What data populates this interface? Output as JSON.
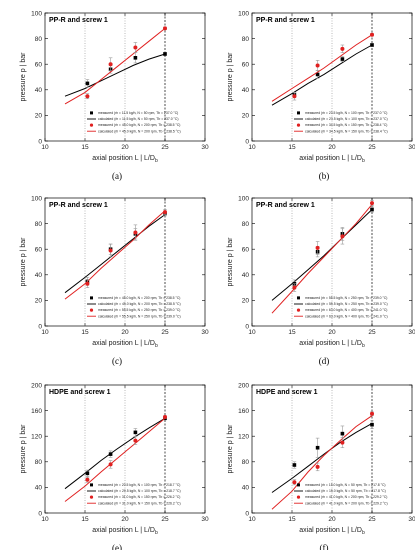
{
  "chart_data": [
    {
      "type": "line",
      "label": "(a)",
      "title": "PP-R and screw 1",
      "xlabel": "axial position L  |  L/D",
      "xlabel_sub": "b",
      "ylabel": "pressure p  |  bar",
      "xlim": [
        10,
        30
      ],
      "ylim": [
        0,
        100
      ],
      "xticks": [
        10,
        15,
        20,
        25,
        30
      ],
      "yticks": [
        0,
        20,
        40,
        60,
        80,
        100
      ],
      "vline": 25,
      "legend": [
        "measured (ṁ = 11.5 kg/h, N = 50 rpm, Tb = 237.0 °C)",
        "calculated (ṁ = 11.5 kg/h, N = 50 rpm, Tb = 237.0 °C)",
        "measured (ṁ = 45.0 kg/h, N = 200 rpm, Tb = 238.5 °C)",
        "calculated (ṁ = 45.0 kg/h, N = 200 rpm, Tb = 238.5 °C)"
      ],
      "series": [
        {
          "color": "#000000",
          "kind": "calculated",
          "x": [
            12.5,
            15,
            17,
            19,
            21,
            23,
            25
          ],
          "y": [
            35,
            41,
            47,
            53,
            59,
            64,
            68
          ]
        },
        {
          "color": "#000000",
          "kind": "measured",
          "x": [
            15.3,
            18.2,
            21.3,
            25
          ],
          "y": [
            45,
            56,
            65,
            68
          ],
          "err": [
            3,
            3,
            4,
            1
          ]
        },
        {
          "color": "#e02020",
          "kind": "calculated",
          "x": [
            12.5,
            15,
            17,
            19,
            21,
            23,
            25
          ],
          "y": [
            29,
            38,
            48,
            58,
            68,
            78,
            88
          ]
        },
        {
          "color": "#e02020",
          "kind": "measured",
          "x": [
            15.3,
            18.2,
            21.3,
            25
          ],
          "y": [
            35,
            60,
            73,
            88
          ],
          "err": [
            2,
            5,
            4,
            1
          ]
        }
      ]
    },
    {
      "type": "line",
      "label": "(b)",
      "title": "PP-R and screw 1",
      "xlabel": "axial position L  |  L/D",
      "xlabel_sub": "b",
      "ylabel": "pressure p  |  bar",
      "xlim": [
        10,
        30
      ],
      "ylim": [
        0,
        100
      ],
      "xticks": [
        10,
        15,
        20,
        25,
        30
      ],
      "yticks": [
        0,
        20,
        40,
        60,
        80,
        100
      ],
      "vline": 25,
      "legend": [
        "measured (ṁ = 23.5 kg/h, N = 100 rpm, Tb = 237.0 °C)",
        "calculated (ṁ = 23.5 kg/h, N = 100 rpm, Tb = 237.0 °C)",
        "measured (ṁ = 34.5 kg/h, N = 150 rpm, Tb = 238.4 °C)",
        "calculated (ṁ = 34.5 kg/h, N = 150 rpm, Tb = 238.4 °C)"
      ],
      "series": [
        {
          "color": "#000000",
          "kind": "calculated",
          "x": [
            12.5,
            15,
            17,
            19,
            21,
            23,
            25
          ],
          "y": [
            28,
            37,
            45,
            52,
            60,
            68,
            75
          ]
        },
        {
          "color": "#000000",
          "kind": "measured",
          "x": [
            15.3,
            18.2,
            21.3,
            25
          ],
          "y": [
            36,
            52,
            64,
            75
          ],
          "err": [
            2,
            3,
            2,
            1
          ]
        },
        {
          "color": "#e02020",
          "kind": "calculated",
          "x": [
            12.5,
            15,
            17,
            19,
            21,
            23,
            25
          ],
          "y": [
            31,
            41,
            49,
            57,
            66,
            75,
            83
          ]
        },
        {
          "color": "#e02020",
          "kind": "measured",
          "x": [
            15.3,
            18.2,
            21.3,
            25
          ],
          "y": [
            35,
            59,
            72,
            83
          ],
          "err": [
            3,
            4,
            3,
            1
          ]
        }
      ]
    },
    {
      "type": "line",
      "label": "(c)",
      "title": "PP-R and screw 1",
      "xlabel": "axial position L  |  L/D",
      "xlabel_sub": "b",
      "ylabel": "pressure p  |  bar",
      "xlim": [
        10,
        30
      ],
      "ylim": [
        0,
        100
      ],
      "xticks": [
        10,
        15,
        20,
        25,
        30
      ],
      "yticks": [
        0,
        20,
        40,
        60,
        80,
        100
      ],
      "vline": 25,
      "legend": [
        "measured (ṁ = 45.0 kg/h, N = 200 rpm, Tb = 238.5 °C)",
        "calculated (ṁ = 45.0 kg/h, N = 200 rpm, Tb = 238.5 °C)",
        "measured (ṁ = 55.5 kg/h, N = 250 rpm, Tb = 239.0 °C)",
        "calculated (ṁ = 55.5 kg/h, N = 250 rpm, Tb = 239.0 °C)"
      ],
      "series": [
        {
          "color": "#000000",
          "kind": "calculated",
          "x": [
            12.5,
            15,
            17,
            19,
            21,
            23,
            25
          ],
          "y": [
            26,
            38,
            48,
            58,
            68,
            78,
            87
          ]
        },
        {
          "color": "#000000",
          "kind": "measured",
          "x": [
            15.3,
            18.2,
            21.3,
            25
          ],
          "y": [
            35,
            60,
            72,
            88
          ],
          "err": [
            3,
            4,
            4,
            2
          ]
        },
        {
          "color": "#e02020",
          "kind": "calculated",
          "x": [
            12.5,
            15,
            17,
            19,
            21,
            23,
            25
          ],
          "y": [
            21,
            33,
            45,
            56,
            67,
            79,
            90
          ]
        },
        {
          "color": "#e02020",
          "kind": "measured",
          "x": [
            15.3,
            18.2,
            21.3,
            25
          ],
          "y": [
            33,
            59,
            73,
            89
          ],
          "err": [
            3,
            5,
            6,
            2
          ]
        }
      ]
    },
    {
      "type": "line",
      "label": "(d)",
      "title": "PP-R and screw 1",
      "xlabel": "axial position L  |  L/D",
      "xlabel_sub": "b",
      "ylabel": "pressure p  |  bar",
      "xlim": [
        10,
        30
      ],
      "ylim": [
        0,
        100
      ],
      "xticks": [
        10,
        15,
        20,
        25,
        30
      ],
      "yticks": [
        0,
        20,
        40,
        60,
        80,
        100
      ],
      "vline": 25,
      "legend": [
        "measured (ṁ = 55.5 kg/h, N = 250 rpm, Tb = 239.0 °C)",
        "calculated (ṁ = 55.5 kg/h, N = 250 rpm, Tb = 239.0 °C)",
        "measured (ṁ = 63.0 kg/h, N = 400 rpm, Tb = 241.0 °C)",
        "calculated (ṁ = 63.0 kg/h, N = 400 rpm, Tb = 241.0 °C)"
      ],
      "series": [
        {
          "color": "#000000",
          "kind": "calculated",
          "x": [
            12.5,
            15,
            17,
            19,
            21,
            23,
            25
          ],
          "y": [
            20,
            33,
            44,
            55,
            67,
            79,
            91
          ]
        },
        {
          "color": "#000000",
          "kind": "measured",
          "x": [
            15.3,
            18.2,
            21.3,
            25
          ],
          "y": [
            33,
            58,
            72,
            91
          ],
          "err": [
            3,
            4,
            5,
            2
          ]
        },
        {
          "color": "#e02020",
          "kind": "calculated",
          "x": [
            12.5,
            15,
            17,
            19,
            21,
            23,
            25
          ],
          "y": [
            10,
            27,
            41,
            54,
            67,
            80,
            95
          ]
        },
        {
          "color": "#e02020",
          "kind": "measured",
          "x": [
            15.3,
            18.2,
            21.3,
            25
          ],
          "y": [
            30,
            61,
            70,
            96
          ],
          "err": [
            3,
            5,
            6,
            2
          ]
        }
      ]
    },
    {
      "type": "line",
      "label": "(e)",
      "title": "HDPE and screw 1",
      "xlabel": "axial position L  |  L/D",
      "xlabel_sub": "b",
      "ylabel": "pressure p  |  bar",
      "xlim": [
        10,
        30
      ],
      "ylim": [
        0,
        200
      ],
      "xticks": [
        10,
        15,
        20,
        25,
        30
      ],
      "yticks": [
        0,
        40,
        80,
        120,
        160,
        200
      ],
      "vline": 25,
      "legend": [
        "measured (ṁ = 20.5 kg/h, N = 100 rpm, Tb = 218.7 °C)",
        "calculated (ṁ = 20.5 kg/h, N = 100 rpm, Tb = 218.7 °C)",
        "measured (ṁ = 31.0 kg/h, N = 150 rpm, Tb = 226.2 °C)",
        "calculated (ṁ = 31.0 kg/h, N = 150 rpm, Tb = 226.2 °C)"
      ],
      "series": [
        {
          "color": "#000000",
          "kind": "calculated",
          "x": [
            12.5,
            15,
            17,
            19,
            21,
            23,
            25
          ],
          "y": [
            38,
            62,
            82,
            100,
            117,
            133,
            148
          ]
        },
        {
          "color": "#000000",
          "kind": "measured",
          "x": [
            15.3,
            18.2,
            21.3,
            25
          ],
          "y": [
            62,
            92,
            126,
            148
          ],
          "err": [
            5,
            5,
            6,
            2
          ]
        },
        {
          "color": "#e02020",
          "kind": "calculated",
          "x": [
            12.5,
            15,
            17,
            19,
            21,
            23,
            25
          ],
          "y": [
            18,
            42,
            64,
            85,
            106,
            127,
            148
          ]
        },
        {
          "color": "#e02020",
          "kind": "measured",
          "x": [
            15.3,
            18.2,
            21.3,
            25
          ],
          "y": [
            52,
            76,
            113,
            150
          ],
          "err": [
            4,
            6,
            6,
            2
          ]
        }
      ]
    },
    {
      "type": "line",
      "label": "(f)",
      "title": "HDPE and screw 1",
      "xlabel": "axial position L  |  L/D",
      "xlabel_sub": "b",
      "ylabel": "pressure p  |  bar",
      "xlim": [
        10,
        30
      ],
      "ylim": [
        0,
        200
      ],
      "xticks": [
        10,
        15,
        20,
        25,
        30
      ],
      "yticks": [
        0,
        40,
        80,
        120,
        160,
        200
      ],
      "vline": 25,
      "legend": [
        "measured (ṁ = 15.0 kg/h, N = 50 rpm, Tb = 217.8 °C)",
        "calculated (ṁ = 15.0 kg/h, N = 50 rpm, Tb = 217.8 °C)",
        "measured (ṁ = 41.0 kg/h, N = 200 rpm, Tb = 229.2 °C)",
        "calculated (ṁ = 41.0 kg/h, N = 200 rpm, Tb = 229.2 °C)"
      ],
      "series": [
        {
          "color": "#000000",
          "kind": "calculated",
          "x": [
            12.5,
            15,
            17,
            19,
            21,
            23,
            25
          ],
          "y": [
            32,
            54,
            73,
            92,
            110,
            126,
            140
          ]
        },
        {
          "color": "#000000",
          "kind": "measured",
          "x": [
            15.3,
            18.2,
            21.3,
            25
          ],
          "y": [
            75,
            102,
            124,
            138
          ],
          "err": [
            5,
            15,
            12,
            6
          ]
        },
        {
          "color": "#e02020",
          "kind": "calculated",
          "x": [
            12.5,
            15,
            17,
            19,
            21,
            23,
            25
          ],
          "y": [
            6,
            34,
            64,
            90,
            113,
            135,
            152
          ]
        },
        {
          "color": "#e02020",
          "kind": "measured",
          "x": [
            15.3,
            18.2,
            21.3,
            25
          ],
          "y": [
            48,
            72,
            110,
            155
          ],
          "err": [
            4,
            6,
            8,
            3
          ]
        }
      ]
    }
  ]
}
